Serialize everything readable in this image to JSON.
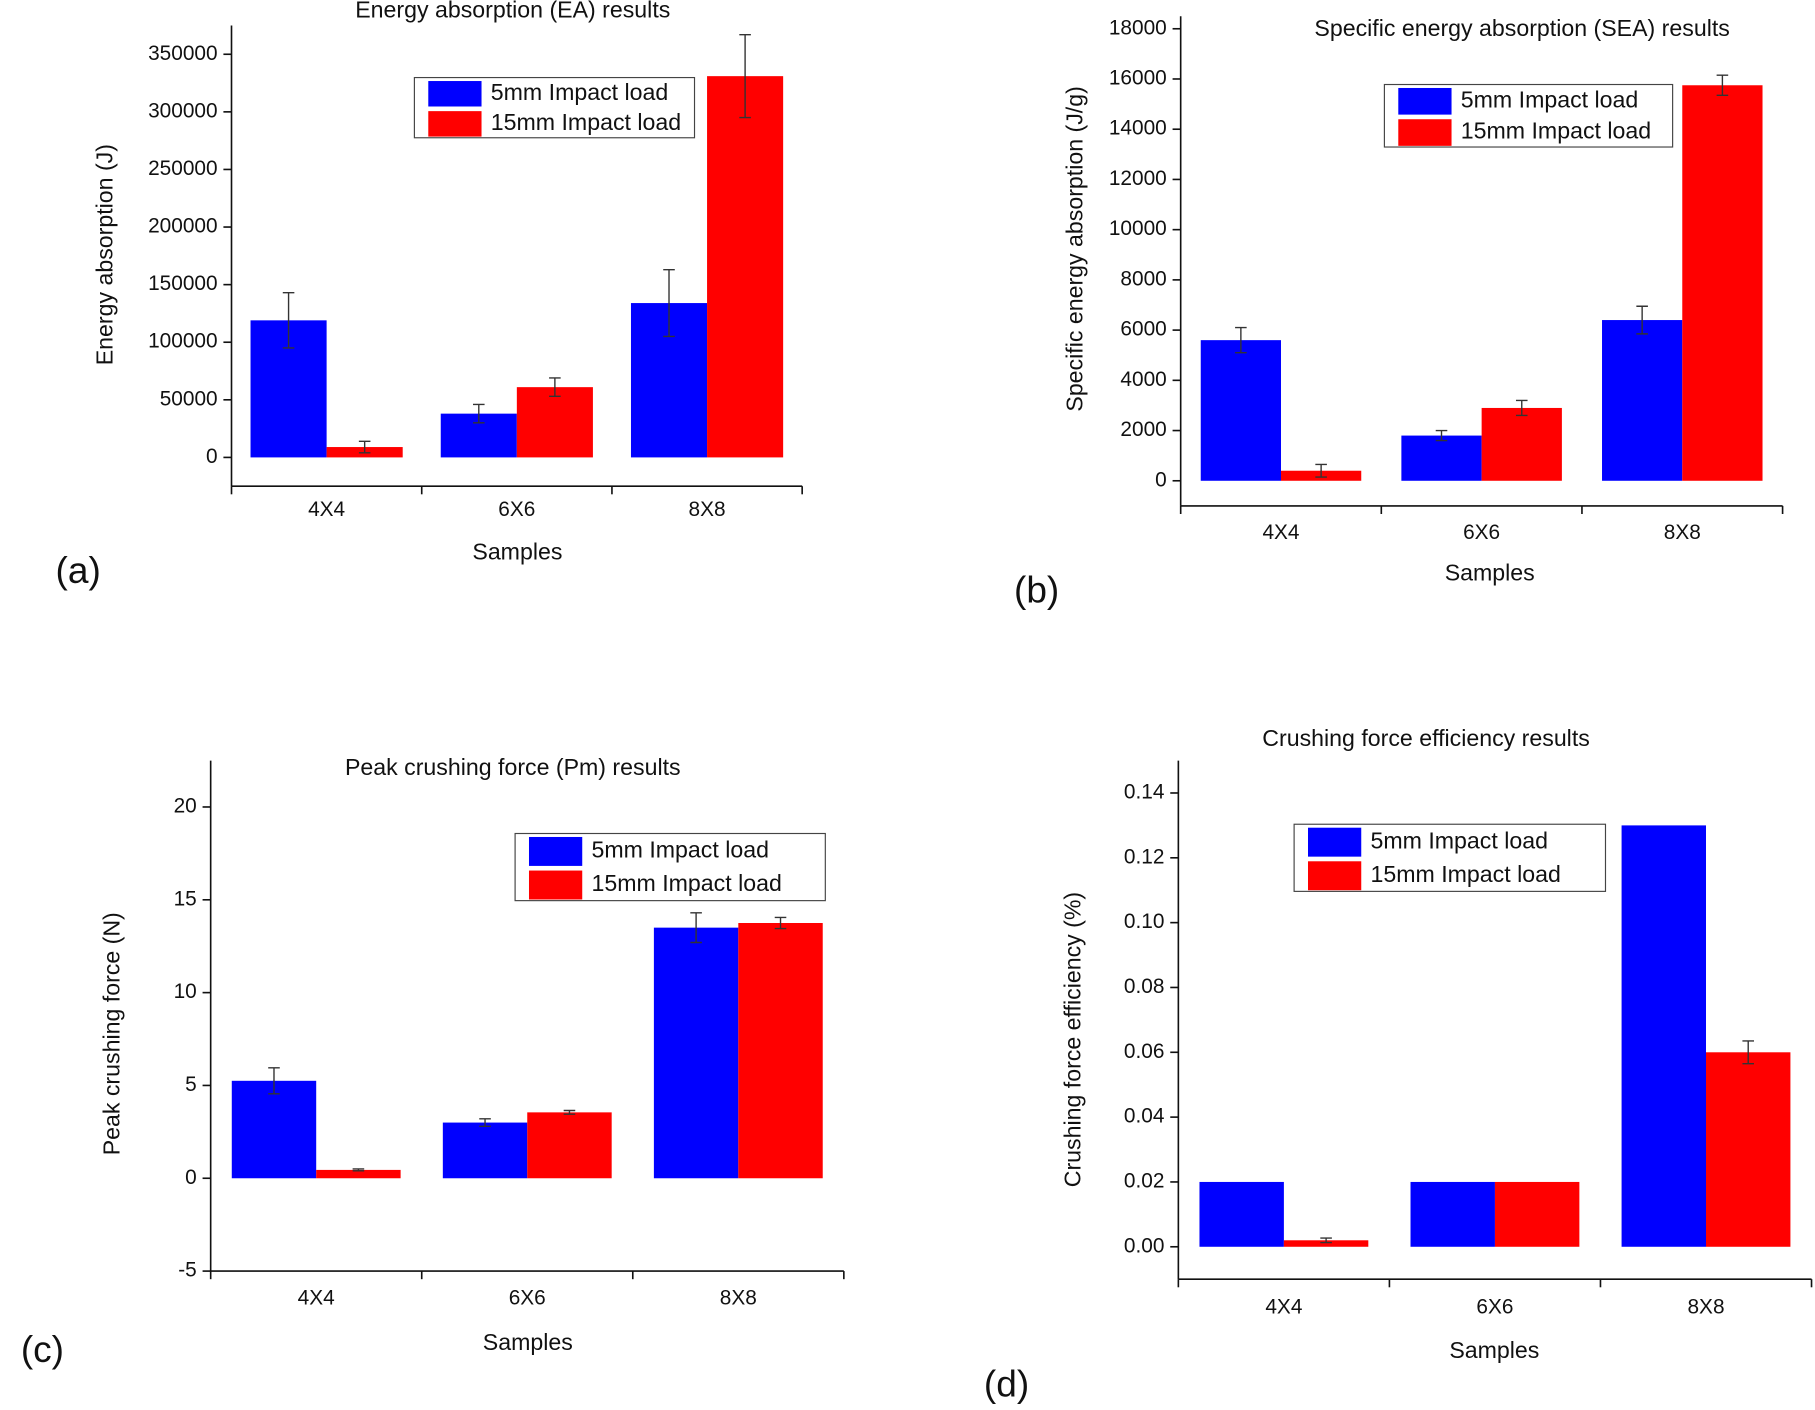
{
  "chart_data": [
    {
      "type": "bar",
      "title": "Energy absorption (EA) results",
      "panel_label": "(a)",
      "x_label": "Samples",
      "y_label": "Energy absorption (J)",
      "categories": [
        "4X4",
        "6X6",
        "8X8"
      ],
      "series": [
        {
          "name": "5mm Impact load",
          "color": "#0000ff",
          "values": [
            119000,
            38000,
            134000
          ],
          "errors": [
            24000,
            8000,
            29000
          ]
        },
        {
          "name": "15mm Impact load",
          "color": "#ff0000",
          "values": [
            9000,
            61000,
            331000
          ],
          "errors": [
            5000,
            8000,
            36000
          ]
        }
      ],
      "ylim": [
        -25000,
        375000
      ],
      "yticks": [
        0,
        50000,
        100000,
        150000,
        200000,
        250000,
        300000,
        350000
      ]
    },
    {
      "type": "bar",
      "title": "Specific energy absorption (SEA) results",
      "panel_label": "(b)",
      "x_label": "Samples",
      "y_label": "Specific energy absorption (J/g)",
      "categories": [
        "4X4",
        "6X6",
        "8X8"
      ],
      "series": [
        {
          "name": "5mm Impact load",
          "color": "#0000ff",
          "values": [
            5600,
            1800,
            6400
          ],
          "errors": [
            500,
            200,
            550
          ]
        },
        {
          "name": "15mm Impact load",
          "color": "#ff0000",
          "values": [
            400,
            2900,
            15750
          ],
          "errors": [
            250,
            300,
            400
          ]
        }
      ],
      "ylim": [
        -1000,
        18500
      ],
      "yticks": [
        0,
        2000,
        4000,
        6000,
        8000,
        10000,
        12000,
        14000,
        16000,
        18000
      ]
    },
    {
      "type": "bar",
      "title": "Peak crushing force (Pm) results",
      "panel_label": "(c)",
      "x_label": "Samples",
      "y_label": "Peak crushing force (N)",
      "categories": [
        "4X4",
        "6X6",
        "8X8"
      ],
      "series": [
        {
          "name": "5mm Impact load",
          "color": "#0000ff",
          "values": [
            5.25,
            3.0,
            13.5
          ],
          "errors": [
            0.7,
            0.2,
            0.8
          ]
        },
        {
          "name": "15mm Impact load",
          "color": "#ff0000",
          "values": [
            0.45,
            3.55,
            13.75
          ],
          "errors": [
            0.05,
            0.1,
            0.3
          ]
        }
      ],
      "ylim": [
        -5,
        22.5
      ],
      "yticks": [
        -5,
        0,
        5,
        10,
        15,
        20
      ]
    },
    {
      "type": "bar",
      "title": "Crushing force efficiency results",
      "panel_label": "(d)",
      "x_label": "Samples",
      "y_label": "Crushing force efficiency (%)",
      "categories": [
        "4X4",
        "6X6",
        "8X8"
      ],
      "series": [
        {
          "name": "5mm Impact load",
          "color": "#0000ff",
          "values": [
            0.02,
            0.02,
            0.13
          ],
          "errors": [
            null,
            null,
            null
          ]
        },
        {
          "name": "15mm Impact load",
          "color": "#ff0000",
          "values": [
            0.002,
            0.02,
            0.06
          ],
          "errors": [
            0.0007,
            null,
            0.0035
          ]
        }
      ],
      "ylim": [
        -0.01,
        0.15
      ],
      "yticks": [
        {
          "value": 0,
          "label": "0.00"
        },
        {
          "value": 0.02,
          "label": "0.02"
        },
        {
          "value": 0.04,
          "label": "0.04"
        },
        {
          "value": 0.06,
          "label": "0.06"
        },
        {
          "value": 0.08,
          "label": "0.08"
        },
        {
          "value": 0.1,
          "label": "0.10"
        },
        {
          "value": 0.12,
          "label": "0.12"
        },
        {
          "value": 0.14,
          "label": "0.14"
        }
      ]
    }
  ]
}
